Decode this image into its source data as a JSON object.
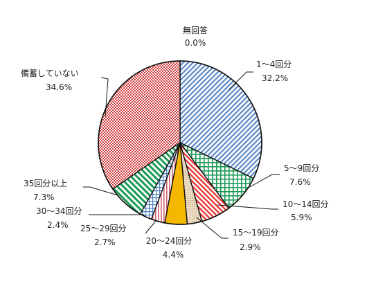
{
  "chart_data": {
    "type": "pie",
    "title": "",
    "start": "top",
    "direction": "clockwise",
    "slices": [
      {
        "label": "1～4回分",
        "value_label": "32.2%",
        "value": 32.2,
        "color": "#5b86c8",
        "pattern": "diagonal-stripes"
      },
      {
        "label": "5～9回分",
        "value_label": "7.6%",
        "value": 7.6,
        "color": "#1a9a55",
        "pattern": "grid"
      },
      {
        "label": "10～14回分",
        "value_label": "5.9%",
        "value": 5.9,
        "color": "#e53935",
        "pattern": "diagonal-stripes"
      },
      {
        "label": "15～19回分",
        "value_label": "2.9%",
        "value": 2.9,
        "color": "#c8a070",
        "pattern": "dots"
      },
      {
        "label": "20～24回分",
        "value_label": "4.4%",
        "value": 4.4,
        "color": "#f5b800",
        "pattern": "solid"
      },
      {
        "label": "25～29回分",
        "value_label": "2.7%",
        "value": 2.7,
        "color": "#d06070",
        "pattern": "vertical-stripes"
      },
      {
        "label": "30～34回分",
        "value_label": "2.4%",
        "value": 2.4,
        "color": "#4a7fc0",
        "pattern": "grid"
      },
      {
        "label": "35回分以上",
        "value_label": "7.3%",
        "value": 7.3,
        "color": "#1a9a55",
        "pattern": "diagonal-stripes-reverse"
      },
      {
        "label": "備蓄していない",
        "value_label": "34.6%",
        "value": 34.6,
        "color": "#d03838",
        "pattern": "checker"
      },
      {
        "label": "無回答",
        "value_label": "0.0%",
        "value": 0.0,
        "color": "#888888",
        "pattern": "solid"
      }
    ]
  }
}
